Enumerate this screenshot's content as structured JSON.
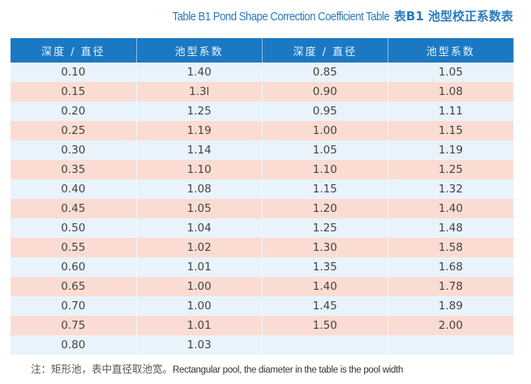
{
  "title": {
    "en": "Table B1 Pond Shape Correction Coefficient Table",
    "zh": "表B1  池型校正系数表"
  },
  "headers": [
    "深度 / 直径",
    "池型系数",
    "深度 / 直径",
    "池型系数"
  ],
  "rows": [
    [
      "0.10",
      "1.40",
      "0.85",
      "1.05"
    ],
    [
      "0.15",
      "1.3l",
      "0.90",
      "1.08"
    ],
    [
      "0.20",
      "1.25",
      "0.95",
      "1.11"
    ],
    [
      "0.25",
      "1.19",
      "1.00",
      "1.15"
    ],
    [
      "0.30",
      "1.14",
      "1.05",
      "1.19"
    ],
    [
      "0.35",
      "1.10",
      "1.10",
      "1.25"
    ],
    [
      "0.40",
      "1.08",
      "1.15",
      "1.32"
    ],
    [
      "0.45",
      "1.05",
      "1.20",
      "1.40"
    ],
    [
      "0.50",
      "1.04",
      "1.25",
      "1.48"
    ],
    [
      "0.55",
      "1.02",
      "1.30",
      "1.58"
    ],
    [
      "0.60",
      "1.01",
      "1.35",
      "1.68"
    ],
    [
      "0.65",
      "1.00",
      "1.40",
      "1.78"
    ],
    [
      "0.70",
      "1.00",
      "1.45",
      "1.89"
    ],
    [
      "0.75",
      "1.01",
      "1.50",
      "2.00"
    ],
    [
      "0.80",
      "1.03",
      "",
      ""
    ]
  ],
  "note": {
    "zh": "注：矩形池，表中直径取池宽。",
    "en": "Rectangular pool, the diameter in the table is the pool width"
  },
  "colors": {
    "header": "#1b79c4",
    "row_blue": "#e9f3fb",
    "row_pink": "#fbdcd2",
    "title": "#2b7bbf"
  }
}
